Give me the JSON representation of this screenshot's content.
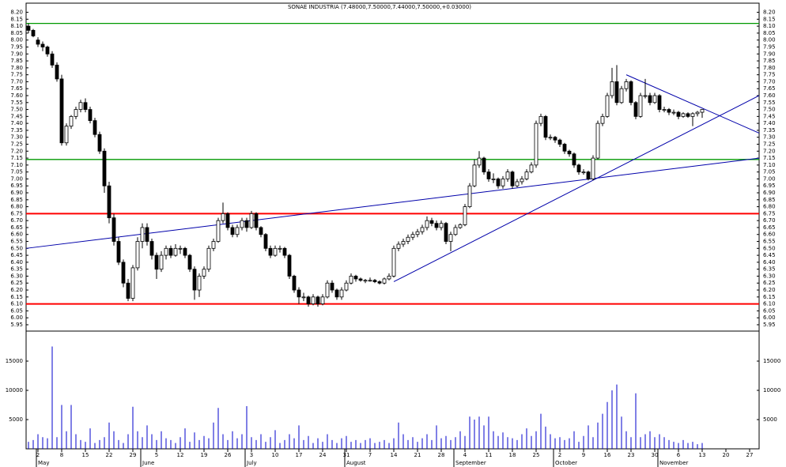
{
  "chart_data": {
    "type": "candlestick",
    "title": "SONAE INDUSTRIA (7.48000,7.50000,7.44000,7.50000,+0.03000)",
    "ohlc": [
      [
        8.1,
        8.12,
        8.05,
        8.07
      ],
      [
        8.07,
        8.08,
        8.02,
        8.03
      ],
      [
        8.0,
        8.02,
        7.95,
        7.97
      ],
      [
        7.97,
        7.99,
        7.92,
        7.95
      ],
      [
        7.95,
        7.96,
        7.88,
        7.9
      ],
      [
        7.9,
        7.92,
        7.8,
        7.82
      ],
      [
        7.82,
        7.84,
        7.7,
        7.72
      ],
      [
        7.72,
        7.75,
        7.24,
        7.26
      ],
      [
        7.26,
        7.4,
        7.24,
        7.38
      ],
      [
        7.38,
        7.46,
        7.36,
        7.45
      ],
      [
        7.45,
        7.52,
        7.43,
        7.5
      ],
      [
        7.5,
        7.57,
        7.48,
        7.55
      ],
      [
        7.55,
        7.58,
        7.48,
        7.5
      ],
      [
        7.5,
        7.52,
        7.4,
        7.42
      ],
      [
        7.42,
        7.44,
        7.3,
        7.32
      ],
      [
        7.32,
        7.34,
        7.18,
        7.2
      ],
      [
        7.2,
        7.22,
        6.9,
        6.95
      ],
      [
        6.95,
        6.98,
        6.68,
        6.72
      ],
      [
        6.72,
        6.75,
        6.52,
        6.55
      ],
      [
        6.55,
        6.58,
        6.38,
        6.4
      ],
      [
        6.4,
        6.42,
        6.22,
        6.25
      ],
      [
        6.25,
        6.28,
        6.12,
        6.14
      ],
      [
        6.14,
        6.38,
        6.12,
        6.36
      ],
      [
        6.36,
        6.58,
        6.34,
        6.55
      ],
      [
        6.55,
        6.68,
        6.5,
        6.65
      ],
      [
        6.65,
        6.68,
        6.52,
        6.55
      ],
      [
        6.55,
        6.57,
        6.42,
        6.45
      ],
      [
        6.45,
        6.47,
        6.28,
        6.35
      ],
      [
        6.35,
        6.48,
        6.33,
        6.45
      ],
      [
        6.45,
        6.52,
        6.42,
        6.5
      ],
      [
        6.5,
        6.52,
        6.43,
        6.45
      ],
      [
        6.45,
        6.53,
        6.44,
        6.5
      ],
      [
        6.5,
        6.52,
        6.46,
        6.5
      ],
      [
        6.5,
        6.51,
        6.43,
        6.45
      ],
      [
        6.45,
        6.46,
        6.33,
        6.35
      ],
      [
        6.35,
        6.37,
        6.13,
        6.2
      ],
      [
        6.2,
        6.32,
        6.15,
        6.3
      ],
      [
        6.3,
        6.37,
        6.28,
        6.35
      ],
      [
        6.35,
        6.52,
        6.33,
        6.5
      ],
      [
        6.5,
        6.57,
        6.48,
        6.55
      ],
      [
        6.55,
        6.72,
        6.54,
        6.7
      ],
      [
        6.7,
        6.83,
        6.68,
        6.75
      ],
      [
        6.75,
        6.76,
        6.63,
        6.65
      ],
      [
        6.65,
        6.67,
        6.58,
        6.6
      ],
      [
        6.6,
        6.67,
        6.58,
        6.65
      ],
      [
        6.65,
        6.72,
        6.63,
        6.7
      ],
      [
        6.7,
        6.72,
        6.62,
        6.65
      ],
      [
        6.65,
        6.77,
        6.64,
        6.75
      ],
      [
        6.75,
        6.76,
        6.63,
        6.65
      ],
      [
        6.65,
        6.66,
        6.58,
        6.6
      ],
      [
        6.6,
        6.61,
        6.48,
        6.5
      ],
      [
        6.5,
        6.52,
        6.43,
        6.45
      ],
      [
        6.45,
        6.52,
        6.44,
        6.5
      ],
      [
        6.5,
        6.52,
        6.47,
        6.5
      ],
      [
        6.5,
        6.51,
        6.43,
        6.45
      ],
      [
        6.45,
        6.46,
        6.28,
        6.3
      ],
      [
        6.3,
        6.31,
        6.18,
        6.2
      ],
      [
        6.2,
        6.22,
        6.1,
        6.15
      ],
      [
        6.15,
        6.18,
        6.12,
        6.15
      ],
      [
        6.15,
        6.16,
        6.08,
        6.1
      ],
      [
        6.1,
        6.17,
        6.09,
        6.15
      ],
      [
        6.15,
        6.16,
        6.08,
        6.1
      ],
      [
        6.1,
        6.17,
        6.09,
        6.15
      ],
      [
        6.15,
        6.27,
        6.14,
        6.25
      ],
      [
        6.25,
        6.27,
        6.18,
        6.2
      ],
      [
        6.2,
        6.21,
        6.13,
        6.15
      ],
      [
        6.15,
        6.22,
        6.13,
        6.2
      ],
      [
        6.2,
        6.27,
        6.19,
        6.25
      ],
      [
        6.25,
        6.32,
        6.24,
        6.3
      ],
      [
        6.3,
        6.31,
        6.26,
        6.28
      ],
      [
        6.28,
        6.29,
        6.26,
        6.27
      ],
      [
        6.27,
        6.28,
        6.25,
        6.27
      ],
      [
        6.27,
        6.29,
        6.26,
        6.27
      ],
      [
        6.27,
        6.28,
        6.25,
        6.26
      ],
      [
        6.26,
        6.27,
        6.24,
        6.25
      ],
      [
        6.25,
        6.29,
        6.24,
        6.28
      ],
      [
        6.28,
        6.32,
        6.27,
        6.3
      ],
      [
        6.3,
        6.52,
        6.29,
        6.5
      ],
      [
        6.5,
        6.55,
        6.48,
        6.53
      ],
      [
        6.53,
        6.57,
        6.51,
        6.55
      ],
      [
        6.55,
        6.6,
        6.53,
        6.58
      ],
      [
        6.58,
        6.62,
        6.56,
        6.6
      ],
      [
        6.6,
        6.64,
        6.58,
        6.62
      ],
      [
        6.62,
        6.67,
        6.6,
        6.65
      ],
      [
        6.65,
        6.73,
        6.63,
        6.7
      ],
      [
        6.7,
        6.72,
        6.66,
        6.68
      ],
      [
        6.68,
        6.7,
        6.63,
        6.65
      ],
      [
        6.65,
        6.7,
        6.63,
        6.68
      ],
      [
        6.68,
        6.69,
        6.53,
        6.55
      ],
      [
        6.55,
        6.62,
        6.48,
        6.6
      ],
      [
        6.6,
        6.67,
        6.59,
        6.65
      ],
      [
        6.65,
        6.68,
        6.64,
        6.67
      ],
      [
        6.67,
        6.82,
        6.66,
        6.8
      ],
      [
        6.8,
        6.97,
        6.79,
        6.95
      ],
      [
        6.95,
        7.14,
        6.94,
        7.1
      ],
      [
        7.1,
        7.2,
        7.08,
        7.15
      ],
      [
        7.15,
        7.16,
        7.03,
        7.05
      ],
      [
        7.05,
        7.07,
        6.98,
        7.0
      ],
      [
        7.0,
        7.04,
        6.97,
        7.0
      ],
      [
        7.0,
        7.01,
        6.93,
        6.95
      ],
      [
        6.95,
        7.02,
        6.93,
        7.0
      ],
      [
        7.0,
        7.07,
        6.98,
        7.05
      ],
      [
        7.05,
        7.06,
        6.93,
        6.95
      ],
      [
        6.95,
        7.0,
        6.94,
        6.98
      ],
      [
        6.98,
        7.02,
        6.96,
        7.0
      ],
      [
        7.0,
        7.07,
        6.99,
        7.05
      ],
      [
        7.05,
        7.12,
        7.04,
        7.1
      ],
      [
        7.1,
        7.42,
        7.08,
        7.4
      ],
      [
        7.4,
        7.47,
        7.38,
        7.45
      ],
      [
        7.45,
        7.46,
        7.28,
        7.3
      ],
      [
        7.3,
        7.32,
        7.28,
        7.3
      ],
      [
        7.3,
        7.31,
        7.26,
        7.28
      ],
      [
        7.28,
        7.29,
        7.23,
        7.25
      ],
      [
        7.25,
        7.26,
        7.18,
        7.2
      ],
      [
        7.2,
        7.21,
        7.16,
        7.18
      ],
      [
        7.18,
        7.19,
        7.08,
        7.1
      ],
      [
        7.1,
        7.11,
        7.03,
        7.05
      ],
      [
        7.05,
        7.07,
        7.03,
        7.05
      ],
      [
        7.05,
        7.06,
        6.99,
        7.0
      ],
      [
        7.0,
        7.17,
        6.99,
        7.15
      ],
      [
        7.15,
        7.42,
        7.14,
        7.4
      ],
      [
        7.4,
        7.47,
        7.38,
        7.45
      ],
      [
        7.45,
        7.62,
        7.44,
        7.6
      ],
      [
        7.6,
        7.8,
        7.58,
        7.7
      ],
      [
        7.7,
        7.82,
        7.53,
        7.55
      ],
      [
        7.55,
        7.67,
        7.54,
        7.65
      ],
      [
        7.65,
        7.72,
        7.63,
        7.7
      ],
      [
        7.7,
        7.71,
        7.53,
        7.55
      ],
      [
        7.55,
        7.56,
        7.43,
        7.45
      ],
      [
        7.45,
        7.62,
        7.44,
        7.6
      ],
      [
        7.6,
        7.72,
        7.58,
        7.6
      ],
      [
        7.6,
        7.62,
        7.53,
        7.55
      ],
      [
        7.55,
        7.62,
        7.54,
        7.6
      ],
      [
        7.6,
        7.61,
        7.48,
        7.5
      ],
      [
        7.5,
        7.52,
        7.48,
        7.5
      ],
      [
        7.5,
        7.51,
        7.46,
        7.48
      ],
      [
        7.48,
        7.5,
        7.46,
        7.48
      ],
      [
        7.48,
        7.49,
        7.43,
        7.45
      ],
      [
        7.45,
        7.48,
        7.44,
        7.47
      ],
      [
        7.47,
        7.48,
        7.44,
        7.45
      ],
      [
        7.45,
        7.48,
        7.38,
        7.47
      ],
      [
        7.47,
        7.49,
        7.45,
        7.48
      ],
      [
        7.48,
        7.5,
        7.44,
        7.5
      ]
    ],
    "volume": [
      1200,
      1500,
      2500,
      2000,
      1800,
      17500,
      2000,
      7500,
      3000,
      7500,
      2500,
      1500,
      1200,
      3500,
      1000,
      1500,
      2000,
      4500,
      3000,
      1500,
      1000,
      2500,
      7200,
      3000,
      2000,
      4000,
      2500,
      1500,
      3000,
      1800,
      1500,
      1000,
      2000,
      3500,
      1200,
      2800,
      1500,
      2200,
      1800,
      4500,
      7000,
      2500,
      1500,
      3000,
      1800,
      2500,
      7300,
      2000,
      1500,
      2500,
      1200,
      2000,
      3200,
      1000,
      1500,
      2500,
      1800,
      4000,
      1500,
      2200,
      1000,
      1800,
      1200,
      2500,
      1500,
      1000,
      1800,
      2200,
      1200,
      1500,
      1000,
      1500,
      1800,
      1000,
      1200,
      1500,
      1000,
      1800,
      4500,
      2500,
      1500,
      2000,
      1200,
      1800,
      2500,
      1500,
      4000,
      1800,
      2200,
      1500,
      2000,
      3000,
      2200,
      5500,
      5000,
      5500,
      4000,
      5500,
      3000,
      2200,
      2800,
      2000,
      1800,
      1500,
      2500,
      3500,
      2200,
      3000,
      6000,
      3800,
      2500,
      1800,
      2000,
      1500,
      1800,
      3000,
      1200,
      2200,
      4000,
      2000,
      4500,
      6000,
      8000,
      10000,
      11000,
      5500,
      3000,
      2000,
      9500,
      2000,
      2500,
      3000,
      2000,
      2500,
      2000,
      1500,
      1200,
      1000,
      1500,
      1000,
      1200,
      800,
      1000
    ],
    "volume_color": "#0000cc",
    "xlim": [
      -0.5,
      154
    ],
    "ylim": [
      5.91,
      8.26
    ],
    "yticks": [
      {
        "value": 5.95,
        "label": "5.95"
      },
      {
        "value": 6.0,
        "label": "6.00"
      },
      {
        "value": 6.05,
        "label": "6.05"
      },
      {
        "value": 6.1,
        "label": "6.10"
      },
      {
        "value": 6.15,
        "label": "6.15"
      },
      {
        "value": 6.2,
        "label": "6.20"
      },
      {
        "value": 6.25,
        "label": "6.25"
      },
      {
        "value": 6.3,
        "label": "6.30"
      },
      {
        "value": 6.35,
        "label": "6.35"
      },
      {
        "value": 6.4,
        "label": "6.40"
      },
      {
        "value": 6.45,
        "label": "6.45"
      },
      {
        "value": 6.5,
        "label": "6.50"
      },
      {
        "value": 6.55,
        "label": "6.55"
      },
      {
        "value": 6.6,
        "label": "6.60"
      },
      {
        "value": 6.65,
        "label": "6.65"
      },
      {
        "value": 6.7,
        "label": "6.70"
      },
      {
        "value": 6.75,
        "label": "6.75"
      },
      {
        "value": 6.8,
        "label": "6.80"
      },
      {
        "value": 6.85,
        "label": "6.85"
      },
      {
        "value": 6.9,
        "label": "6.90"
      },
      {
        "value": 6.95,
        "label": "6.95"
      },
      {
        "value": 7.0,
        "label": "7.00"
      },
      {
        "value": 7.05,
        "label": "7.05"
      },
      {
        "value": 7.1,
        "label": "7.10"
      },
      {
        "value": 7.15,
        "label": "7.15"
      },
      {
        "value": 7.2,
        "label": "7.20"
      },
      {
        "value": 7.25,
        "label": "7.25"
      },
      {
        "value": 7.3,
        "label": "7.30"
      },
      {
        "value": 7.35,
        "label": "7.35"
      },
      {
        "value": 7.4,
        "label": "7.40"
      },
      {
        "value": 7.45,
        "label": "7.45"
      },
      {
        "value": 7.5,
        "label": "7.50"
      },
      {
        "value": 7.55,
        "label": "7.55"
      },
      {
        "value": 7.6,
        "label": "7.60"
      },
      {
        "value": 7.65,
        "label": "7.65"
      },
      {
        "value": 7.7,
        "label": "7.70"
      },
      {
        "value": 7.75,
        "label": "7.75"
      },
      {
        "value": 7.8,
        "label": "7.80"
      },
      {
        "value": 7.85,
        "label": "7.85"
      },
      {
        "value": 7.9,
        "label": "7.90"
      },
      {
        "value": 7.95,
        "label": "7.95"
      },
      {
        "value": 8.0,
        "label": "8.00"
      },
      {
        "value": 8.05,
        "label": "8.05"
      },
      {
        "value": 8.1,
        "label": "8.10"
      },
      {
        "value": 8.15,
        "label": "8.15"
      },
      {
        "value": 8.2,
        "label": "8.20"
      }
    ],
    "y2lim": [
      0,
      20000
    ],
    "y2ticks": [
      5000,
      10000,
      15000
    ],
    "xticks": [
      {
        "value": 2,
        "label": "2"
      },
      {
        "value": 7,
        "label": "8"
      },
      {
        "value": 12,
        "label": "15"
      },
      {
        "value": 17,
        "label": "22"
      },
      {
        "value": 22,
        "label": "29"
      },
      {
        "value": 27,
        "label": "5"
      },
      {
        "value": 32,
        "label": "12"
      },
      {
        "value": 37,
        "label": "19"
      },
      {
        "value": 42,
        "label": "26"
      },
      {
        "value": 47,
        "label": "3"
      },
      {
        "value": 52,
        "label": "10"
      },
      {
        "value": 57,
        "label": "17"
      },
      {
        "value": 62,
        "label": "24"
      },
      {
        "value": 67,
        "label": "31"
      },
      {
        "value": 72,
        "label": "7"
      },
      {
        "value": 77,
        "label": "14"
      },
      {
        "value": 82,
        "label": "21"
      },
      {
        "value": 87,
        "label": "28"
      },
      {
        "value": 92,
        "label": "4"
      },
      {
        "value": 97,
        "label": "11"
      },
      {
        "value": 102,
        "label": "18"
      },
      {
        "value": 107,
        "label": "25"
      },
      {
        "value": 112,
        "label": "2"
      },
      {
        "value": 117,
        "label": "9"
      },
      {
        "value": 122,
        "label": "16"
      },
      {
        "value": 127,
        "label": "23"
      },
      {
        "value": 132,
        "label": "30"
      },
      {
        "value": 137,
        "label": "6"
      },
      {
        "value": 142,
        "label": "13"
      },
      {
        "value": 147,
        "label": "20"
      },
      {
        "value": 152,
        "label": "27"
      }
    ],
    "months": [
      {
        "value": 2,
        "label": "May"
      },
      {
        "value": 24,
        "label": "June"
      },
      {
        "value": 46,
        "label": "July"
      },
      {
        "value": 67,
        "label": "August"
      },
      {
        "value": 90,
        "label": "September"
      },
      {
        "value": 111,
        "label": "October"
      },
      {
        "value": 133,
        "label": "November"
      }
    ],
    "hlines": [
      {
        "value": 8.12,
        "color": "#009900"
      },
      {
        "value": 7.14,
        "color": "#009900"
      },
      {
        "value": 6.75,
        "color": "#ff0000"
      },
      {
        "value": 6.1,
        "color": "#ff0000"
      }
    ],
    "trendlines": [
      {
        "from": [
          -0.5,
          6.5
        ],
        "to": [
          154,
          7.15
        ],
        "color": "#0000aa"
      },
      {
        "from": [
          77,
          6.26
        ],
        "to": [
          154,
          7.6
        ],
        "color": "#0000aa"
      },
      {
        "from": [
          126,
          7.75
        ],
        "to": [
          154,
          7.33
        ],
        "color": "#0000aa"
      }
    ]
  }
}
